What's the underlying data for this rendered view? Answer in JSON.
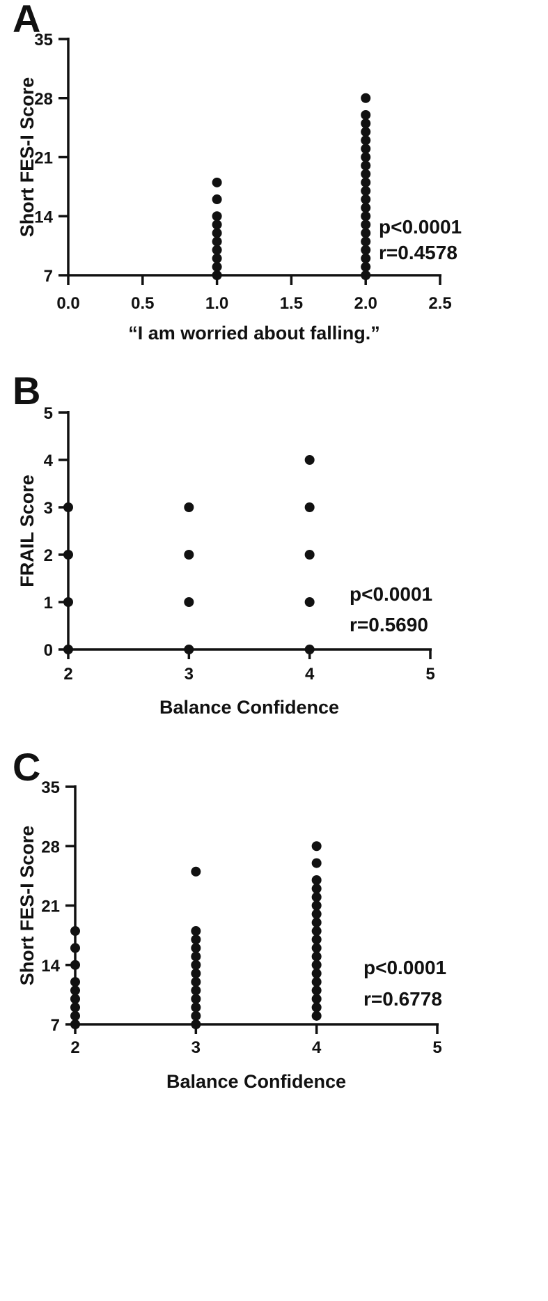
{
  "chart_data": [
    {
      "type": "scatter",
      "panel_label": "A",
      "xlabel": "“I am worried about falling.”",
      "ylabel": "Short FES-I Score",
      "xlim": [
        0,
        2.5
      ],
      "ylim": [
        7,
        35
      ],
      "xticks": [
        "0.0",
        "0.5",
        "1.0",
        "1.5",
        "2.0",
        "2.5"
      ],
      "yticks": [
        "7",
        "14",
        "21",
        "28",
        "35"
      ],
      "annotation": [
        "p<0.0001",
        "r=0.4578"
      ],
      "points": [
        [
          1,
          7
        ],
        [
          1,
          8
        ],
        [
          1,
          9
        ],
        [
          1,
          10
        ],
        [
          1,
          11
        ],
        [
          1,
          12
        ],
        [
          1,
          13
        ],
        [
          1,
          14
        ],
        [
          1,
          16
        ],
        [
          1,
          18
        ],
        [
          2,
          7
        ],
        [
          2,
          8
        ],
        [
          2,
          9
        ],
        [
          2,
          10
        ],
        [
          2,
          11
        ],
        [
          2,
          12
        ],
        [
          2,
          13
        ],
        [
          2,
          14
        ],
        [
          2,
          15
        ],
        [
          2,
          16
        ],
        [
          2,
          17
        ],
        [
          2,
          18
        ],
        [
          2,
          19
        ],
        [
          2,
          20
        ],
        [
          2,
          21
        ],
        [
          2,
          22
        ],
        [
          2,
          23
        ],
        [
          2,
          24
        ],
        [
          2,
          25
        ],
        [
          2,
          26
        ],
        [
          2,
          28
        ]
      ]
    },
    {
      "type": "scatter",
      "panel_label": "B",
      "xlabel": "Balance Confidence",
      "ylabel": "FRAIL Score",
      "xlim": [
        2,
        5
      ],
      "ylim": [
        0,
        5
      ],
      "xticks": [
        "2",
        "3",
        "4",
        "5"
      ],
      "yticks": [
        "0",
        "1",
        "2",
        "3",
        "4",
        "5"
      ],
      "annotation": [
        "p<0.0001",
        "r=0.5690"
      ],
      "points": [
        [
          2,
          0
        ],
        [
          2,
          1
        ],
        [
          2,
          2
        ],
        [
          2,
          3
        ],
        [
          3,
          0
        ],
        [
          3,
          1
        ],
        [
          3,
          2
        ],
        [
          3,
          3
        ],
        [
          4,
          0
        ],
        [
          4,
          1
        ],
        [
          4,
          2
        ],
        [
          4,
          3
        ],
        [
          4,
          4
        ]
      ]
    },
    {
      "type": "scatter",
      "panel_label": "C",
      "xlabel": "Balance Confidence",
      "ylabel": "Short FES-I Score",
      "xlim": [
        2,
        5
      ],
      "ylim": [
        7,
        35
      ],
      "xticks": [
        "2",
        "3",
        "4",
        "5"
      ],
      "yticks": [
        "7",
        "14",
        "21",
        "28",
        "35"
      ],
      "annotation": [
        "p<0.0001",
        "r=0.6778"
      ],
      "points": [
        [
          2,
          7
        ],
        [
          2,
          8
        ],
        [
          2,
          9
        ],
        [
          2,
          10
        ],
        [
          2,
          11
        ],
        [
          2,
          12
        ],
        [
          2,
          14
        ],
        [
          2,
          16
        ],
        [
          2,
          18
        ],
        [
          3,
          7
        ],
        [
          3,
          8
        ],
        [
          3,
          9
        ],
        [
          3,
          10
        ],
        [
          3,
          11
        ],
        [
          3,
          12
        ],
        [
          3,
          13
        ],
        [
          3,
          14
        ],
        [
          3,
          15
        ],
        [
          3,
          16
        ],
        [
          3,
          17
        ],
        [
          3,
          18
        ],
        [
          3,
          25
        ],
        [
          4,
          8
        ],
        [
          4,
          9
        ],
        [
          4,
          10
        ],
        [
          4,
          11
        ],
        [
          4,
          12
        ],
        [
          4,
          13
        ],
        [
          4,
          14
        ],
        [
          4,
          15
        ],
        [
          4,
          16
        ],
        [
          4,
          17
        ],
        [
          4,
          18
        ],
        [
          4,
          19
        ],
        [
          4,
          20
        ],
        [
          4,
          21
        ],
        [
          4,
          22
        ],
        [
          4,
          23
        ],
        [
          4,
          24
        ],
        [
          4,
          26
        ],
        [
          4,
          28
        ]
      ]
    }
  ]
}
